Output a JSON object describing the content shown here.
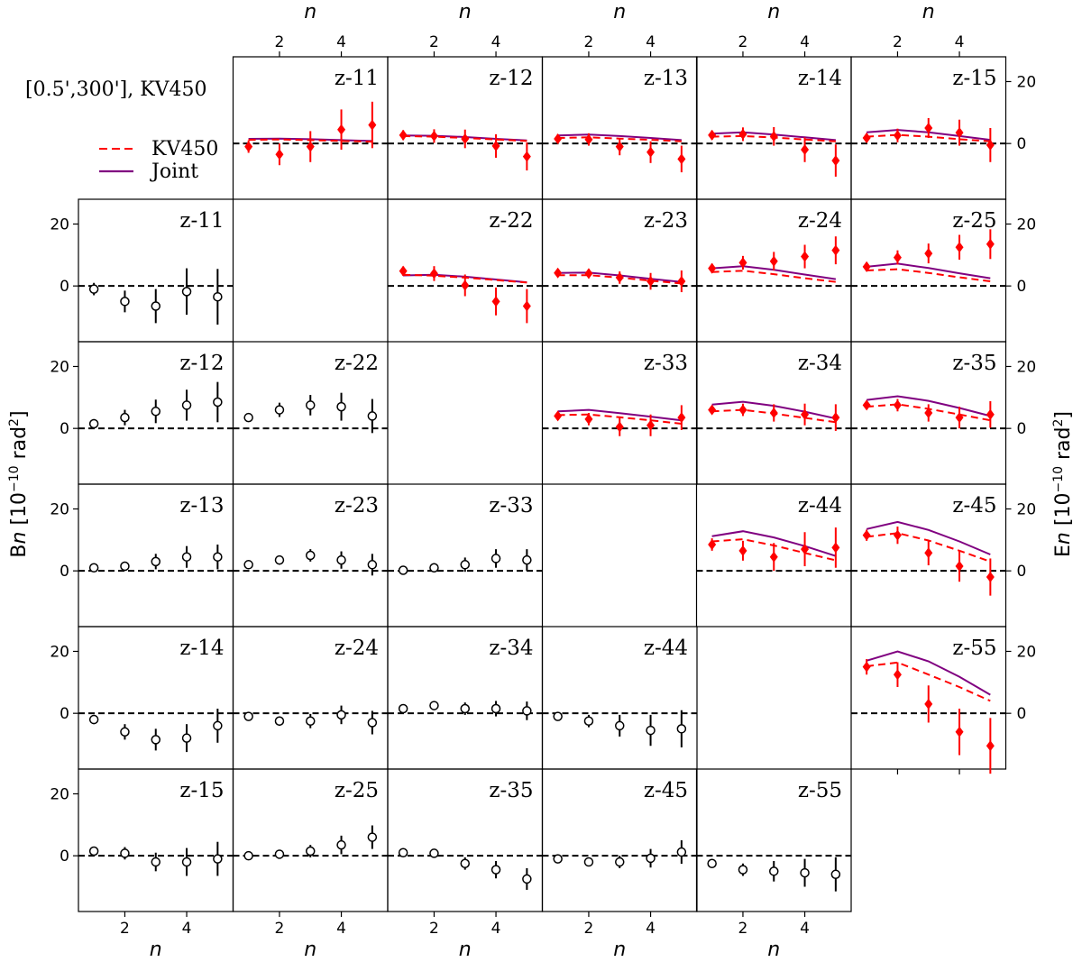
{
  "chart_data": {
    "type": "scatter",
    "annotation": "[0.5',300'],  KV450",
    "legend": {
      "placement": "top-left",
      "entries": [
        {
          "label": "KV450",
          "color": "#ff0000",
          "style": "dashed"
        },
        {
          "label": "Joint",
          "color": "#800080",
          "style": "solid"
        }
      ]
    },
    "axis_labels": {
      "x": "n",
      "y_left": "B_n [10^-10 rad^2]",
      "y_right": "E_n [10^-10 rad^2]"
    },
    "x": [
      1,
      2,
      3,
      4,
      5
    ],
    "x_ticks": [
      2,
      4
    ],
    "y_ticks": [
      0,
      20
    ],
    "ylim": [
      -18,
      28
    ],
    "zero_line": true,
    "e_mode_panels": [
      {
        "label": "z-11",
        "values": [
          -1,
          -3.5,
          -1,
          4.5,
          6
        ],
        "errors": [
          2,
          3.5,
          5,
          6.5,
          7.5
        ],
        "kv450_model": [
          1.2,
          1.3,
          1.1,
          0.8,
          0.6
        ],
        "joint_model": [
          1.5,
          1.6,
          1.4,
          1.1,
          0.8
        ]
      },
      {
        "label": "z-12",
        "values": [
          2.7,
          2.4,
          1.5,
          -0.8,
          -4.2
        ],
        "errors": [
          1.6,
          2.2,
          3,
          3.8,
          4.5
        ],
        "kv450_model": [
          2.4,
          2.2,
          1.8,
          1.3,
          0.8
        ],
        "joint_model": [
          2.6,
          2.5,
          2.1,
          1.5,
          1
        ]
      },
      {
        "label": "z-13",
        "values": [
          1.5,
          1.3,
          -1,
          -2.8,
          -5
        ],
        "errors": [
          1.5,
          2,
          2.8,
          3.5,
          4.3
        ],
        "kv450_model": [
          1.8,
          2,
          1.6,
          1.2,
          0.7
        ],
        "joint_model": [
          2.6,
          2.9,
          2.4,
          1.8,
          1.1
        ]
      },
      {
        "label": "z-14",
        "values": [
          2.7,
          3,
          2.3,
          -2,
          -5.5
        ],
        "errors": [
          1.5,
          2.2,
          3,
          4,
          5.2
        ],
        "kv450_model": [
          2.2,
          2.4,
          1.9,
          1.3,
          0.7
        ],
        "joint_model": [
          3.2,
          3.6,
          2.9,
          2,
          1.1
        ]
      },
      {
        "label": "z-15",
        "values": [
          1.8,
          2.6,
          5,
          3.5,
          -0.5
        ],
        "errors": [
          1.5,
          2.2,
          3.2,
          4.2,
          5.5
        ],
        "kv450_model": [
          2.2,
          2.8,
          2.2,
          1.4,
          0.7
        ],
        "joint_model": [
          3.6,
          4.4,
          3.6,
          2.4,
          1.2
        ]
      },
      {
        "label": "z-22",
        "values": [
          4.8,
          4,
          0.2,
          -5,
          -6.5
        ],
        "errors": [
          1.5,
          2.4,
          3.5,
          4.5,
          5.5
        ],
        "kv450_model": [
          3.6,
          3.3,
          2.7,
          1.9,
          1.1
        ],
        "joint_model": [
          3.4,
          3.6,
          3,
          2.1,
          1.2
        ]
      },
      {
        "label": "z-23",
        "values": [
          4.2,
          4,
          2.7,
          1.5,
          1.5
        ],
        "errors": [
          1.2,
          1.5,
          2,
          2.7,
          3.5
        ],
        "kv450_model": [
          3.5,
          3.5,
          2.7,
          1.7,
          0.8
        ],
        "joint_model": [
          4.2,
          4.3,
          3.4,
          2.3,
          1.3
        ]
      },
      {
        "label": "z-24",
        "values": [
          5.7,
          7.5,
          8,
          9.5,
          11.5
        ],
        "errors": [
          1.5,
          2.2,
          3,
          3.8,
          4.5
        ],
        "kv450_model": [
          4.5,
          4.9,
          3.8,
          2.5,
          1.3
        ],
        "joint_model": [
          5.7,
          6.4,
          5.2,
          3.7,
          2.2
        ]
      },
      {
        "label": "z-25",
        "values": [
          6.2,
          9.2,
          10.5,
          12.5,
          13.5
        ],
        "errors": [
          1.5,
          2.3,
          3.2,
          4,
          4.8
        ],
        "kv450_model": [
          5,
          5.4,
          4.2,
          2.8,
          1.5
        ],
        "joint_model": [
          6.2,
          7.2,
          5.8,
          4.1,
          2.5
        ]
      },
      {
        "label": "z-33",
        "values": [
          4,
          3,
          0.5,
          1,
          3.5
        ],
        "errors": [
          1.3,
          2,
          3,
          3.5,
          4
        ],
        "kv450_model": [
          4.3,
          4.5,
          3.6,
          2.6,
          1.5
        ],
        "joint_model": [
          5.5,
          6,
          4.9,
          3.8,
          2.6
        ]
      },
      {
        "label": "z-34",
        "values": [
          6,
          6,
          5,
          4.5,
          3.5
        ],
        "errors": [
          1.3,
          2,
          2.8,
          3.5,
          4.3
        ],
        "kv450_model": [
          5.5,
          6,
          4.8,
          3.4,
          2
        ],
        "joint_model": [
          7.7,
          8.6,
          7.3,
          5.4,
          3.2
        ]
      },
      {
        "label": "z-35",
        "values": [
          7.5,
          7.5,
          5,
          3.5,
          4.5
        ],
        "errors": [
          1.3,
          2,
          2.8,
          3.5,
          4.3
        ],
        "kv450_model": [
          7,
          7.8,
          6.3,
          4.5,
          2.6
        ],
        "joint_model": [
          9.2,
          10.4,
          8.9,
          6.6,
          4
        ]
      },
      {
        "label": "z-44",
        "values": [
          8.5,
          6.5,
          4.5,
          7,
          7.5
        ],
        "errors": [
          2,
          3.2,
          4.5,
          5.5,
          6.5
        ],
        "kv450_model": [
          9.5,
          10.2,
          8.2,
          5.8,
          3.4
        ],
        "joint_model": [
          11.2,
          12.8,
          10.8,
          8,
          4.8
        ]
      },
      {
        "label": "z-45",
        "values": [
          11.5,
          11.5,
          5.8,
          1.5,
          -2
        ],
        "errors": [
          1.8,
          2.8,
          4,
          5,
          6
        ],
        "kv450_model": [
          11,
          12.2,
          9.8,
          6.5,
          3
        ],
        "joint_model": [
          13.5,
          15.8,
          13.2,
          9.5,
          5.3
        ]
      },
      {
        "label": "z-55",
        "values": [
          15,
          12.5,
          3,
          -6,
          -10.5
        ],
        "errors": [
          2.5,
          4,
          6,
          7.5,
          9
        ],
        "kv450_model": [
          15.2,
          16.4,
          12.5,
          8.5,
          4
        ],
        "joint_model": [
          17,
          20,
          16.8,
          11.8,
          6
        ]
      }
    ],
    "b_mode_panels": [
      {
        "label": "z-11",
        "values": [
          -1,
          -5,
          -6.5,
          -1.8,
          -3.5
        ],
        "errors": [
          2,
          3.5,
          5.5,
          7.5,
          9
        ]
      },
      {
        "label": "z-12",
        "values": [
          1.5,
          3.5,
          5.5,
          7.5,
          8.5
        ],
        "errors": [
          1.5,
          2.5,
          3.8,
          5,
          6.5
        ]
      },
      {
        "label": "z-22",
        "values": [
          3.5,
          6,
          7.5,
          7,
          4
        ],
        "errors": [
          1.2,
          2.3,
          3.3,
          4.5,
          5.5
        ]
      },
      {
        "label": "z-13",
        "values": [
          1,
          1.5,
          3,
          4.5,
          4.5
        ],
        "errors": [
          1,
          1.5,
          2.5,
          3.5,
          4
        ]
      },
      {
        "label": "z-23",
        "values": [
          2,
          3.5,
          5,
          3.5,
          2
        ],
        "errors": [
          1,
          1.5,
          2,
          2.8,
          3.5
        ]
      },
      {
        "label": "z-33",
        "values": [
          0.2,
          1,
          2,
          4,
          3.5
        ],
        "errors": [
          1,
          1.5,
          2.3,
          3,
          3.5
        ]
      },
      {
        "label": "z-14",
        "values": [
          -2,
          -6,
          -8.5,
          -8,
          -4
        ],
        "errors": [
          1.5,
          2.5,
          3.5,
          4.5,
          5.5
        ]
      },
      {
        "label": "z-24",
        "values": [
          -1,
          -2.5,
          -2.5,
          -0.5,
          -3
        ],
        "errors": [
          1,
          1.5,
          2.3,
          3,
          3.8
        ]
      },
      {
        "label": "z-34",
        "values": [
          1.5,
          2.5,
          1.5,
          1.5,
          0.8
        ],
        "errors": [
          1,
          1.3,
          2,
          2.5,
          3
        ]
      },
      {
        "label": "z-44",
        "values": [
          -1,
          -2.5,
          -4,
          -5.5,
          -5
        ],
        "errors": [
          1,
          2,
          3.5,
          5,
          6
        ]
      },
      {
        "label": "z-15",
        "values": [
          1.5,
          0.8,
          -2,
          -2,
          -1
        ],
        "errors": [
          1.2,
          2,
          3,
          4.5,
          5.5
        ]
      },
      {
        "label": "z-25",
        "values": [
          0,
          0.5,
          1.5,
          3.5,
          6
        ],
        "errors": [
          0.8,
          1.2,
          2,
          3,
          3.8
        ]
      },
      {
        "label": "z-35",
        "values": [
          1,
          0.8,
          -2.5,
          -4.5,
          -7.5
        ],
        "errors": [
          0.8,
          1.2,
          2,
          2.8,
          3.5
        ]
      },
      {
        "label": "z-45",
        "values": [
          -1,
          -2,
          -2,
          -0.8,
          1.2
        ],
        "errors": [
          1,
          1.3,
          2,
          3,
          3.8
        ]
      },
      {
        "label": "z-55",
        "values": [
          -2.5,
          -4.5,
          -5,
          -5.5,
          -6
        ],
        "errors": [
          1,
          2,
          3.3,
          4.5,
          5.5
        ]
      }
    ]
  }
}
